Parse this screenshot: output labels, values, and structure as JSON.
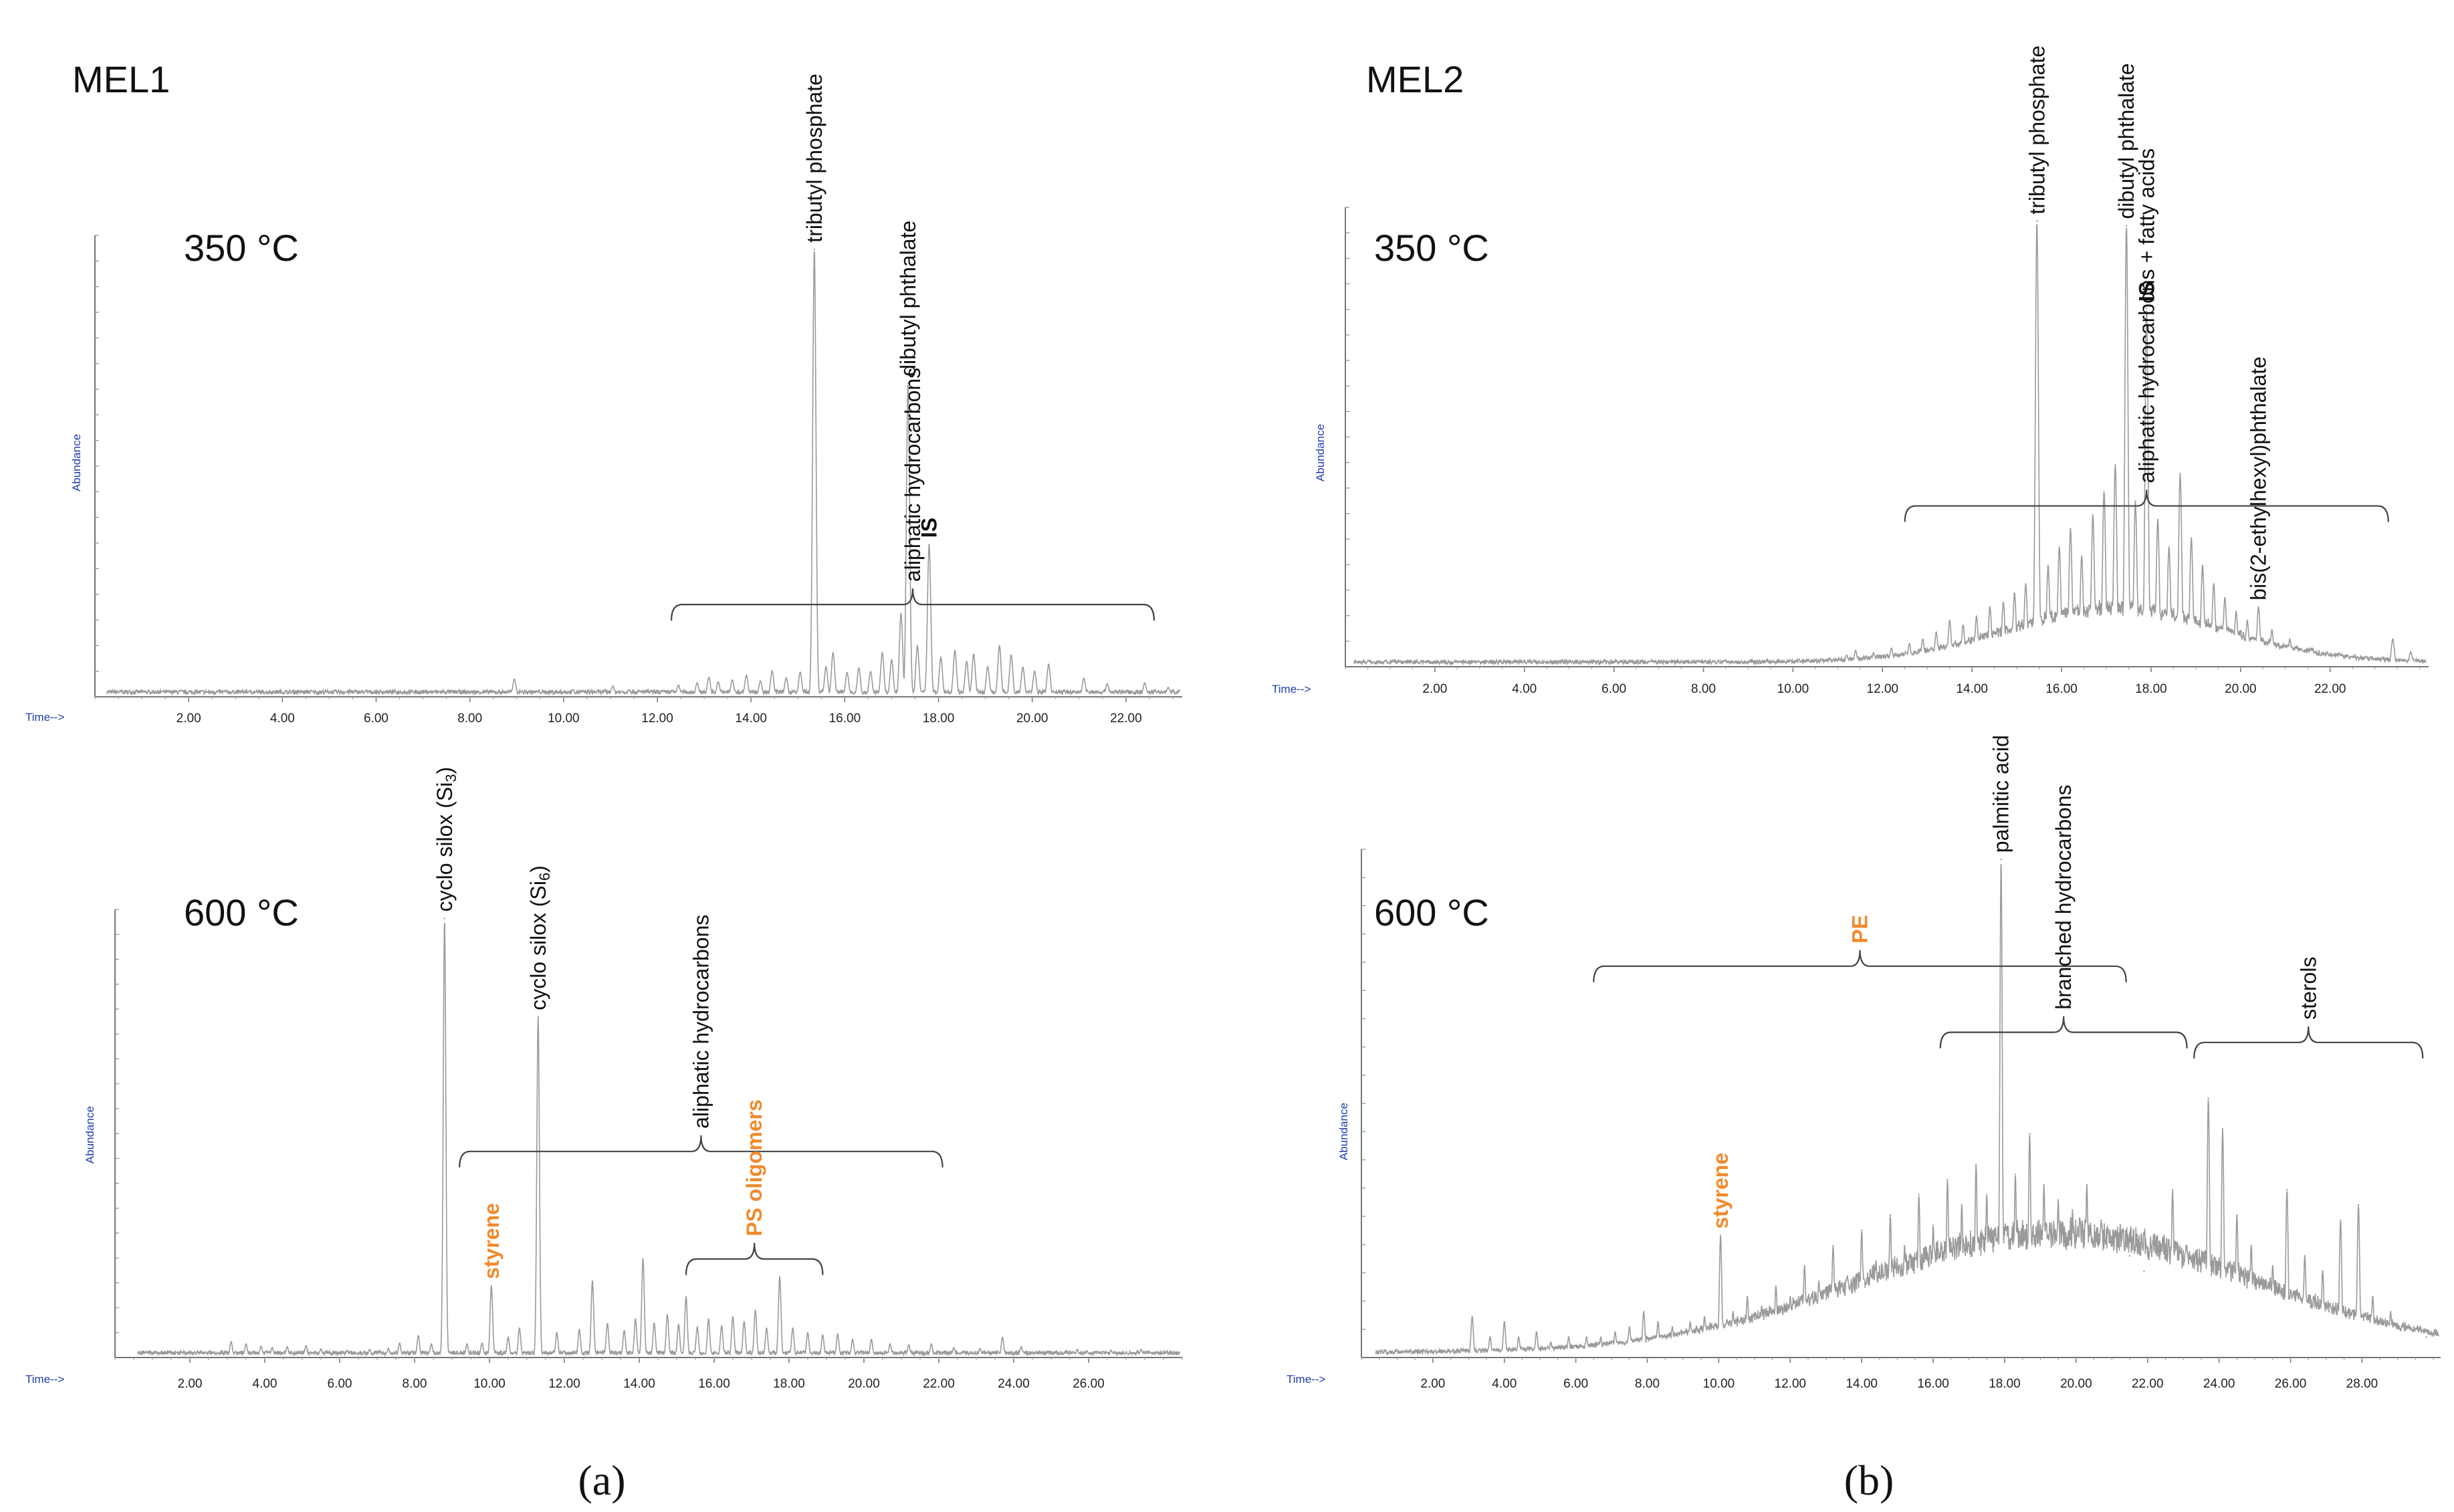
{
  "colors": {
    "orange": "#f08a2c",
    "text": "#111111",
    "axis_meta": "#1f3cae",
    "trace": "#9a9a9a"
  },
  "panels": [
    {
      "label": "MEL1",
      "caption": "(a)"
    },
    {
      "label": "MEL2",
      "caption": "(b)"
    }
  ],
  "chart_data": [
    {
      "id": "c0",
      "type": "line",
      "panel": "MEL1",
      "temperature": "350 °C",
      "xlabel": "Time-->",
      "ylabel": "Abundance",
      "xlim": [
        0,
        23.2
      ],
      "ylim": [
        0,
        100
      ],
      "xticks": [
        "2.00",
        "4.00",
        "6.00",
        "8.00",
        "10.00",
        "12.00",
        "14.00",
        "16.00",
        "18.00",
        "20.00",
        "22.00"
      ],
      "peaks": [
        {
          "x": 3.3,
          "y": 1.2
        },
        {
          "x": 8.95,
          "y": 3.8
        },
        {
          "x": 10.2,
          "y": 1.5
        },
        {
          "x": 11.05,
          "y": 2.3
        },
        {
          "x": 11.4,
          "y": 1.5
        },
        {
          "x": 12.45,
          "y": 2.5
        },
        {
          "x": 12.85,
          "y": 3.0
        },
        {
          "x": 13.1,
          "y": 4.2
        },
        {
          "x": 13.3,
          "y": 3.2
        },
        {
          "x": 13.6,
          "y": 3.6
        },
        {
          "x": 13.9,
          "y": 4.6
        },
        {
          "x": 14.2,
          "y": 3.4
        },
        {
          "x": 14.45,
          "y": 5.6
        },
        {
          "x": 14.75,
          "y": 4.1
        },
        {
          "x": 15.05,
          "y": 5.3
        },
        {
          "x": 15.35,
          "y": 97
        },
        {
          "x": 15.6,
          "y": 6.5
        },
        {
          "x": 15.75,
          "y": 9.5
        },
        {
          "x": 16.05,
          "y": 5.2
        },
        {
          "x": 16.3,
          "y": 6.2
        },
        {
          "x": 16.55,
          "y": 5.4
        },
        {
          "x": 16.8,
          "y": 9.5
        },
        {
          "x": 17.0,
          "y": 8.0
        },
        {
          "x": 17.2,
          "y": 18
        },
        {
          "x": 17.35,
          "y": 68
        },
        {
          "x": 17.55,
          "y": 11
        },
        {
          "x": 17.8,
          "y": 33
        },
        {
          "x": 18.05,
          "y": 8.5
        },
        {
          "x": 18.35,
          "y": 10
        },
        {
          "x": 18.6,
          "y": 7.6
        },
        {
          "x": 18.75,
          "y": 9.2
        },
        {
          "x": 19.05,
          "y": 6.5
        },
        {
          "x": 19.3,
          "y": 11
        },
        {
          "x": 19.55,
          "y": 9.0
        },
        {
          "x": 19.8,
          "y": 6.4
        },
        {
          "x": 20.05,
          "y": 5.5
        },
        {
          "x": 20.35,
          "y": 7.0
        },
        {
          "x": 21.1,
          "y": 4.0
        },
        {
          "x": 21.6,
          "y": 2.8
        },
        {
          "x": 22.4,
          "y": 3.0
        },
        {
          "x": 22.9,
          "y": 2.0
        }
      ],
      "annotations": [
        {
          "x": 15.35,
          "y": 97,
          "text": "tributyl phosphate",
          "style": "normal"
        },
        {
          "x": 17.35,
          "y": 68,
          "text": "dibutyl phthalate",
          "style": "normal"
        },
        {
          "x": 17.8,
          "y": 33,
          "text": "IS",
          "style": "bold"
        }
      ],
      "brackets": [
        {
          "x1": 12.3,
          "x2": 22.6,
          "y": 20,
          "text": "aliphatic hydrocarbons",
          "style": "normal"
        }
      ]
    },
    {
      "id": "c1",
      "type": "line",
      "panel": "MEL1",
      "temperature": "600 °C",
      "xlabel": "Time-->",
      "ylabel": "Abundance",
      "xlim": [
        0,
        28.5
      ],
      "ylim": [
        0,
        100
      ],
      "xticks": [
        "2.00",
        "4.00",
        "6.00",
        "8.00",
        "10.00",
        "12.00",
        "14.00",
        "16.00",
        "18.00",
        "20.00",
        "22.00",
        "24.00",
        "26.00"
      ],
      "peaks": [
        {
          "x": 3.1,
          "y": 3.5
        },
        {
          "x": 3.5,
          "y": 3.0
        },
        {
          "x": 3.9,
          "y": 2.5
        },
        {
          "x": 4.2,
          "y": 2.2
        },
        {
          "x": 4.6,
          "y": 2.4
        },
        {
          "x": 5.1,
          "y": 2.6
        },
        {
          "x": 5.5,
          "y": 1.9
        },
        {
          "x": 6.2,
          "y": 1.6
        },
        {
          "x": 6.8,
          "y": 1.8
        },
        {
          "x": 7.3,
          "y": 2.0
        },
        {
          "x": 7.6,
          "y": 3.2
        },
        {
          "x": 8.1,
          "y": 4.8
        },
        {
          "x": 8.45,
          "y": 3.0
        },
        {
          "x": 8.8,
          "y": 98
        },
        {
          "x": 9.4,
          "y": 3.0
        },
        {
          "x": 9.8,
          "y": 3.2
        },
        {
          "x": 10.05,
          "y": 16
        },
        {
          "x": 10.5,
          "y": 4.5
        },
        {
          "x": 10.8,
          "y": 6.5
        },
        {
          "x": 11.3,
          "y": 76
        },
        {
          "x": 11.8,
          "y": 5.5
        },
        {
          "x": 12.4,
          "y": 6.2
        },
        {
          "x": 12.75,
          "y": 17
        },
        {
          "x": 13.15,
          "y": 7.5
        },
        {
          "x": 13.6,
          "y": 6.0
        },
        {
          "x": 13.9,
          "y": 8.5
        },
        {
          "x": 14.1,
          "y": 22
        },
        {
          "x": 14.4,
          "y": 7.6
        },
        {
          "x": 14.75,
          "y": 9.5
        },
        {
          "x": 15.05,
          "y": 7.3
        },
        {
          "x": 15.25,
          "y": 13.5
        },
        {
          "x": 15.55,
          "y": 6.8
        },
        {
          "x": 15.85,
          "y": 8.5
        },
        {
          "x": 16.2,
          "y": 7.0
        },
        {
          "x": 16.5,
          "y": 9.0
        },
        {
          "x": 16.8,
          "y": 8.0
        },
        {
          "x": 17.1,
          "y": 10.5
        },
        {
          "x": 17.4,
          "y": 6.5
        },
        {
          "x": 17.75,
          "y": 18
        },
        {
          "x": 18.1,
          "y": 6.5
        },
        {
          "x": 18.5,
          "y": 5.5
        },
        {
          "x": 18.9,
          "y": 5.0
        },
        {
          "x": 19.3,
          "y": 5.2
        },
        {
          "x": 19.7,
          "y": 4.0
        },
        {
          "x": 20.2,
          "y": 4.0
        },
        {
          "x": 20.7,
          "y": 3.0
        },
        {
          "x": 21.2,
          "y": 2.8
        },
        {
          "x": 21.8,
          "y": 3.0
        },
        {
          "x": 22.4,
          "y": 2.2
        },
        {
          "x": 23.1,
          "y": 2.0
        },
        {
          "x": 23.7,
          "y": 4.5
        },
        {
          "x": 24.2,
          "y": 2.4
        },
        {
          "x": 25.7,
          "y": 1.8
        },
        {
          "x": 26.6,
          "y": 1.6
        },
        {
          "x": 27.4,
          "y": 1.8
        }
      ],
      "annotations": [
        {
          "x": 8.8,
          "y": 98,
          "text": "cyclo silox (Si3)",
          "style": "normal"
        },
        {
          "x": 11.3,
          "y": 76,
          "text": "cyclo silox (Si6)",
          "style": "normal"
        },
        {
          "x": 10.05,
          "y": 16,
          "text": "styrene",
          "style": "orange"
        }
      ],
      "brackets": [
        {
          "x1": 9.2,
          "x2": 22.1,
          "y": 46,
          "text": "aliphatic hydrocarbons",
          "style": "normal"
        },
        {
          "x1": 15.25,
          "x2": 18.9,
          "y": 22,
          "text": "PS oligomers",
          "style": "orange"
        }
      ]
    },
    {
      "id": "c2",
      "type": "line",
      "panel": "MEL2",
      "temperature": "350 °C",
      "xlabel": "Time-->",
      "ylabel": "Abundance",
      "xlim": [
        0,
        24.2
      ],
      "ylim": [
        0,
        100
      ],
      "xticks": [
        "2.00",
        "4.00",
        "6.00",
        "8.00",
        "10.00",
        "12.00",
        "14.00",
        "16.00",
        "18.00",
        "20.00",
        "22.00"
      ],
      "peaks": [
        {
          "x": 8.5,
          "y": 1.2
        },
        {
          "x": 11.2,
          "y": 2.5
        },
        {
          "x": 11.4,
          "y": 3.5
        },
        {
          "x": 11.8,
          "y": 3.0
        },
        {
          "x": 12.2,
          "y": 4.0
        },
        {
          "x": 12.6,
          "y": 5.0
        },
        {
          "x": 12.9,
          "y": 6.0
        },
        {
          "x": 13.2,
          "y": 7.5
        },
        {
          "x": 13.5,
          "y": 10.0
        },
        {
          "x": 13.8,
          "y": 9.0
        },
        {
          "x": 14.1,
          "y": 11.0
        },
        {
          "x": 14.4,
          "y": 13.0
        },
        {
          "x": 14.7,
          "y": 14.0
        },
        {
          "x": 14.95,
          "y": 16.0
        },
        {
          "x": 15.2,
          "y": 18.0
        },
        {
          "x": 15.45,
          "y": 97
        },
        {
          "x": 15.7,
          "y": 22.0
        },
        {
          "x": 15.95,
          "y": 26.0
        },
        {
          "x": 16.2,
          "y": 30.0
        },
        {
          "x": 16.45,
          "y": 24.0
        },
        {
          "x": 16.7,
          "y": 33.0
        },
        {
          "x": 16.95,
          "y": 38.0
        },
        {
          "x": 17.2,
          "y": 44.0
        },
        {
          "x": 17.45,
          "y": 96
        },
        {
          "x": 17.65,
          "y": 36.0
        },
        {
          "x": 17.9,
          "y": 78
        },
        {
          "x": 18.15,
          "y": 32.0
        },
        {
          "x": 18.4,
          "y": 26.0
        },
        {
          "x": 18.65,
          "y": 42.0
        },
        {
          "x": 18.9,
          "y": 28.0
        },
        {
          "x": 19.15,
          "y": 22.0
        },
        {
          "x": 19.4,
          "y": 18.0
        },
        {
          "x": 19.65,
          "y": 15.0
        },
        {
          "x": 19.9,
          "y": 12.0
        },
        {
          "x": 20.15,
          "y": 10.0
        },
        {
          "x": 20.4,
          "y": 13.0
        },
        {
          "x": 20.7,
          "y": 8.0
        },
        {
          "x": 21.1,
          "y": 6.0
        },
        {
          "x": 21.6,
          "y": 4.0
        },
        {
          "x": 22.2,
          "y": 3.0
        },
        {
          "x": 22.8,
          "y": 2.2
        },
        {
          "x": 23.4,
          "y": 6.0
        },
        {
          "x": 23.8,
          "y": 3.2
        }
      ],
      "annotations": [
        {
          "x": 15.45,
          "y": 97,
          "text": "tributyl phosphate",
          "style": "normal"
        },
        {
          "x": 17.45,
          "y": 96,
          "text": "dibutyl phthalate",
          "style": "normal"
        },
        {
          "x": 17.9,
          "y": 78,
          "text": "IS",
          "style": "bold"
        },
        {
          "x": 20.4,
          "y": 13,
          "text": "bis(2-ethylhexyl)phthalate",
          "style": "normal"
        }
      ],
      "brackets": [
        {
          "x1": 12.5,
          "x2": 23.3,
          "y": 35,
          "text": "aliphatic hydrocarbons + fatty acids",
          "style": "normal"
        }
      ]
    },
    {
      "id": "c3",
      "type": "line",
      "panel": "MEL2",
      "temperature": "600 °C",
      "xlabel": "Time-->",
      "ylabel": "Abundance",
      "xlim": [
        0,
        30.2
      ],
      "ylim": [
        0,
        100
      ],
      "xticks": [
        "2.00",
        "4.00",
        "6.00",
        "8.00",
        "10.00",
        "12.00",
        "14.00",
        "16.00",
        "18.00",
        "20.00",
        "22.00",
        "24.00",
        "26.00",
        "28.00"
      ],
      "peaks": [
        {
          "x": 3.1,
          "y": 8
        },
        {
          "x": 3.6,
          "y": 4
        },
        {
          "x": 4.0,
          "y": 7
        },
        {
          "x": 4.4,
          "y": 4
        },
        {
          "x": 4.9,
          "y": 5
        },
        {
          "x": 5.3,
          "y": 3
        },
        {
          "x": 5.8,
          "y": 4
        },
        {
          "x": 6.3,
          "y": 4
        },
        {
          "x": 6.7,
          "y": 4
        },
        {
          "x": 7.1,
          "y": 5
        },
        {
          "x": 7.5,
          "y": 6
        },
        {
          "x": 7.9,
          "y": 9
        },
        {
          "x": 8.3,
          "y": 7
        },
        {
          "x": 8.7,
          "y": 6
        },
        {
          "x": 9.2,
          "y": 7
        },
        {
          "x": 9.6,
          "y": 8
        },
        {
          "x": 10.05,
          "y": 24
        },
        {
          "x": 10.4,
          "y": 9
        },
        {
          "x": 10.8,
          "y": 12
        },
        {
          "x": 11.2,
          "y": 10
        },
        {
          "x": 11.6,
          "y": 14
        },
        {
          "x": 12.0,
          "y": 12
        },
        {
          "x": 12.4,
          "y": 18
        },
        {
          "x": 12.8,
          "y": 15
        },
        {
          "x": 13.2,
          "y": 22
        },
        {
          "x": 13.6,
          "y": 16
        },
        {
          "x": 14.0,
          "y": 25
        },
        {
          "x": 14.4,
          "y": 19
        },
        {
          "x": 14.8,
          "y": 28
        },
        {
          "x": 15.2,
          "y": 22
        },
        {
          "x": 15.6,
          "y": 32
        },
        {
          "x": 16.0,
          "y": 26
        },
        {
          "x": 16.4,
          "y": 35
        },
        {
          "x": 16.8,
          "y": 30
        },
        {
          "x": 17.2,
          "y": 38
        },
        {
          "x": 17.5,
          "y": 32
        },
        {
          "x": 17.9,
          "y": 98
        },
        {
          "x": 18.3,
          "y": 36
        },
        {
          "x": 18.7,
          "y": 44
        },
        {
          "x": 19.1,
          "y": 34
        },
        {
          "x": 19.5,
          "y": 31
        },
        {
          "x": 19.9,
          "y": 29
        },
        {
          "x": 20.3,
          "y": 34
        },
        {
          "x": 20.7,
          "y": 27
        },
        {
          "x": 21.1,
          "y": 25
        },
        {
          "x": 21.5,
          "y": 20
        },
        {
          "x": 21.9,
          "y": 17
        },
        {
          "x": 22.3,
          "y": 21
        },
        {
          "x": 22.7,
          "y": 33
        },
        {
          "x": 23.1,
          "y": 22
        },
        {
          "x": 23.7,
          "y": 51
        },
        {
          "x": 24.1,
          "y": 45
        },
        {
          "x": 24.5,
          "y": 28
        },
        {
          "x": 24.9,
          "y": 22
        },
        {
          "x": 25.5,
          "y": 18
        },
        {
          "x": 25.9,
          "y": 33
        },
        {
          "x": 26.4,
          "y": 20
        },
        {
          "x": 26.9,
          "y": 17
        },
        {
          "x": 27.4,
          "y": 27
        },
        {
          "x": 27.9,
          "y": 30
        },
        {
          "x": 28.3,
          "y": 12
        },
        {
          "x": 28.8,
          "y": 9
        },
        {
          "x": 29.3,
          "y": 6
        },
        {
          "x": 29.8,
          "y": 4
        }
      ],
      "annotations": [
        {
          "x": 17.9,
          "y": 98,
          "text": "palmitic acid",
          "style": "normal"
        },
        {
          "x": 10.05,
          "y": 24,
          "text": "styrene",
          "style": "orange"
        }
      ],
      "brackets": [
        {
          "x1": 6.5,
          "x2": 21.4,
          "y": 77,
          "text": "PE",
          "style": "orange"
        },
        {
          "x1": 16.2,
          "x2": 23.1,
          "y": 64,
          "text": "branched hydrocarbons",
          "style": "normal"
        },
        {
          "x1": 23.3,
          "x2": 29.7,
          "y": 62,
          "text": "sterols",
          "style": "normal"
        }
      ]
    }
  ]
}
